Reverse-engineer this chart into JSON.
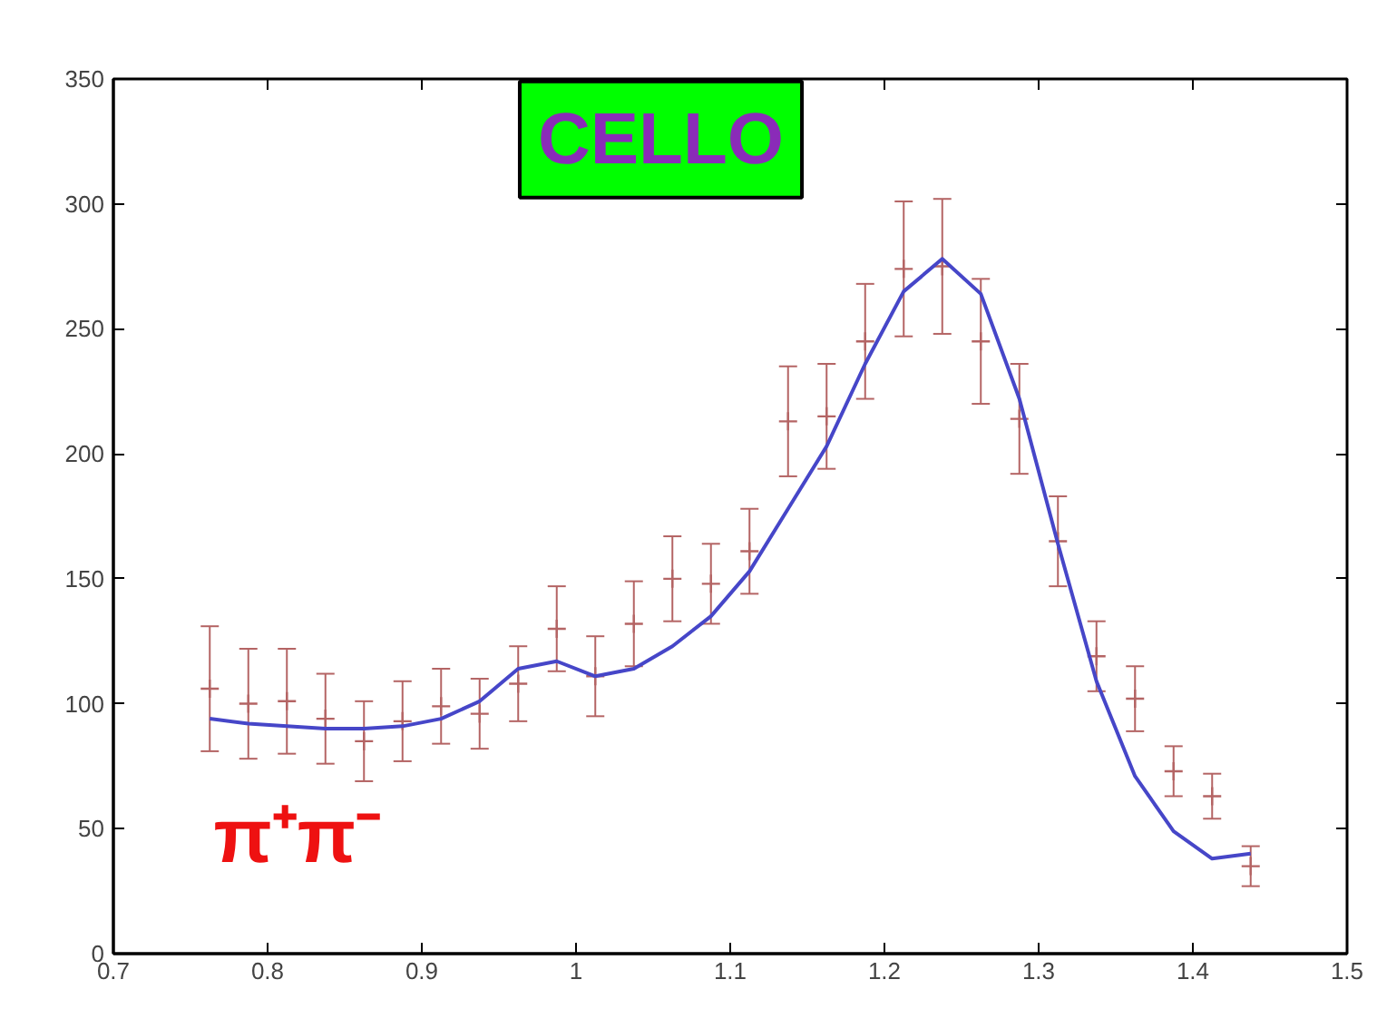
{
  "chart_data": {
    "type": "scatter",
    "x": [
      0.7625,
      0.7875,
      0.8125,
      0.8375,
      0.8625,
      0.8875,
      0.9125,
      0.9375,
      0.9625,
      0.9875,
      1.0125,
      1.0375,
      1.0625,
      1.0875,
      1.1125,
      1.1375,
      1.1625,
      1.1875,
      1.2125,
      1.2375,
      1.2625,
      1.2875,
      1.3125,
      1.3375,
      1.3625,
      1.3875,
      1.4125,
      1.4375
    ],
    "series": [
      {
        "marker": "cross",
        "color": "#b46464",
        "values": [
          106,
          100,
          101,
          94,
          85,
          93,
          99,
          96,
          108,
          130,
          111,
          132,
          150,
          148,
          161,
          213,
          215,
          245,
          274,
          275,
          245,
          214,
          165,
          119,
          102,
          73,
          63,
          35
        ],
        "errors": [
          25,
          22,
          21,
          18,
          16,
          16,
          15,
          14,
          15,
          17,
          16,
          17,
          17,
          16,
          17,
          22,
          21,
          23,
          27,
          27,
          25,
          22,
          18,
          14,
          13,
          10,
          9,
          8
        ]
      },
      {
        "type": "line",
        "color": "#4646c8",
        "values": [
          94,
          92,
          91,
          90,
          90,
          91,
          94,
          101,
          114,
          117,
          111,
          114,
          123,
          135,
          153,
          178,
          203,
          236,
          265,
          278,
          264,
          222,
          164,
          109,
          71,
          49,
          38,
          40
        ]
      }
    ],
    "xlim": [
      0.7,
      1.5
    ],
    "ylim": [
      0,
      350
    ],
    "xticks": [
      0.7,
      0.8,
      0.9,
      1,
      1.1,
      1.2,
      1.3,
      1.4,
      1.5
    ],
    "yticks": [
      0,
      50,
      100,
      150,
      200,
      250,
      300,
      350
    ],
    "annotations": [
      "CELLO",
      "π⁺π⁻"
    ]
  }
}
